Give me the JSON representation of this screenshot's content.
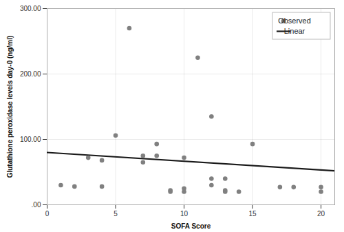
{
  "chart_data": {
    "type": "scatter",
    "xlabel": "SOFA Score",
    "ylabel": "Glutathione peroxidase levels day-0 (ng/ml)",
    "series": [
      {
        "name": "Observed",
        "type": "scatter",
        "color": "#808080",
        "x": [
          1,
          2,
          3,
          4,
          4,
          5,
          6,
          7,
          7,
          8,
          8,
          9,
          9,
          10,
          10,
          10,
          11,
          12,
          12,
          12,
          13,
          13,
          13,
          14,
          15,
          17,
          18,
          20,
          20
        ],
        "values": [
          30,
          28,
          72,
          68,
          28,
          106,
          270,
          75,
          65,
          93,
          75,
          22,
          20,
          20,
          25,
          72,
          225,
          135,
          30,
          40,
          40,
          22,
          20,
          20,
          93,
          27,
          27,
          27,
          20
        ]
      },
      {
        "name": "Linear",
        "type": "line",
        "color": "#1a1a1a",
        "x": [
          0,
          21
        ],
        "values": [
          80,
          52
        ]
      }
    ],
    "xlim": [
      0,
      21
    ],
    "ylim": [
      0,
      300
    ],
    "xticks": [
      0,
      5,
      10,
      15,
      20
    ],
    "yticks": [
      {
        "value": 0,
        "label": ".00"
      },
      {
        "value": 100,
        "label": "100.00"
      },
      {
        "value": 200,
        "label": "200.00"
      },
      {
        "value": 300,
        "label": "300.00"
      }
    ],
    "grid": true,
    "legend": "upper right"
  }
}
